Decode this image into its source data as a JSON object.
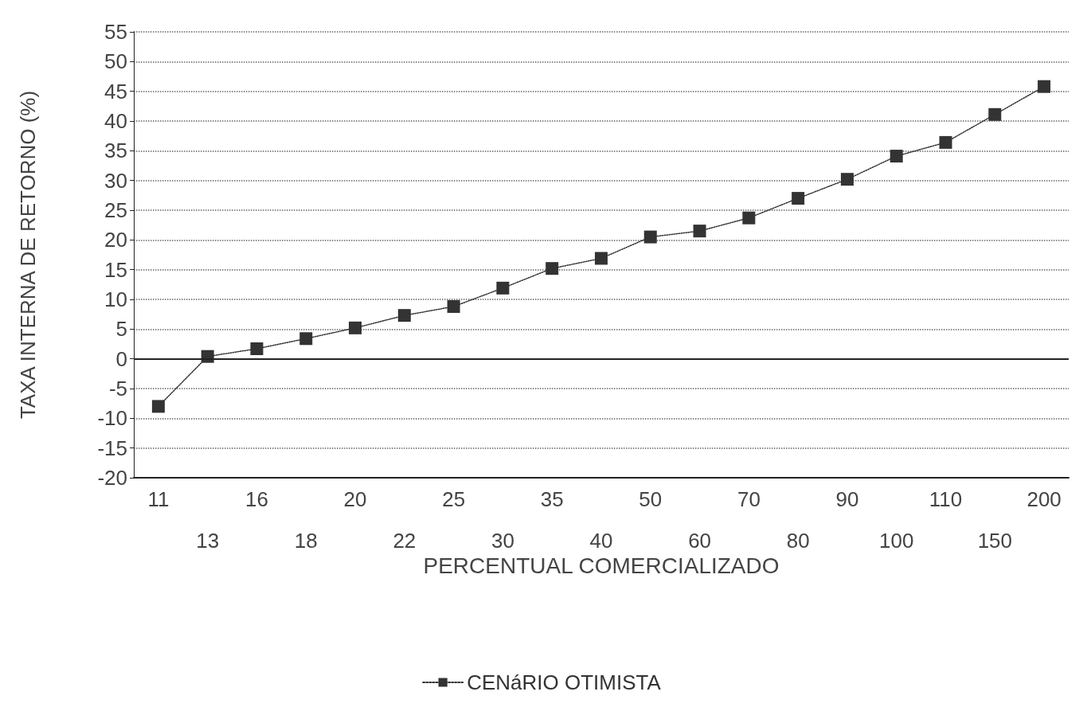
{
  "chart_data": {
    "type": "line",
    "xlabel": "PERCENTUAL COMERCIALIZADO",
    "ylabel": "TAXA INTERNA DE RETORNO (%)",
    "categories": [
      "11",
      "13",
      "16",
      "18",
      "20",
      "22",
      "25",
      "30",
      "35",
      "40",
      "50",
      "60",
      "70",
      "80",
      "90",
      "100",
      "110",
      "150",
      "200"
    ],
    "series": [
      {
        "name": "CENáRIO OTIMISTA",
        "color": "#333333",
        "values": [
          -8.0,
          0.4,
          1.7,
          3.4,
          5.2,
          7.3,
          8.8,
          11.9,
          15.2,
          16.9,
          20.5,
          21.5,
          23.7,
          27.0,
          30.2,
          34.1,
          36.4,
          41.1,
          45.8
        ]
      }
    ],
    "ylim": [
      -20,
      55
    ],
    "yticks": [
      -20,
      -15,
      -10,
      -5,
      0,
      5,
      10,
      15,
      20,
      25,
      30,
      35,
      40,
      45,
      50,
      55
    ],
    "ref_lines": [
      {
        "axis": "y",
        "value": 0,
        "color": "#222222",
        "line_style": "solid"
      }
    ],
    "grid": "y",
    "legend": "bottom",
    "marker": "square",
    "line_style": "dotted"
  }
}
